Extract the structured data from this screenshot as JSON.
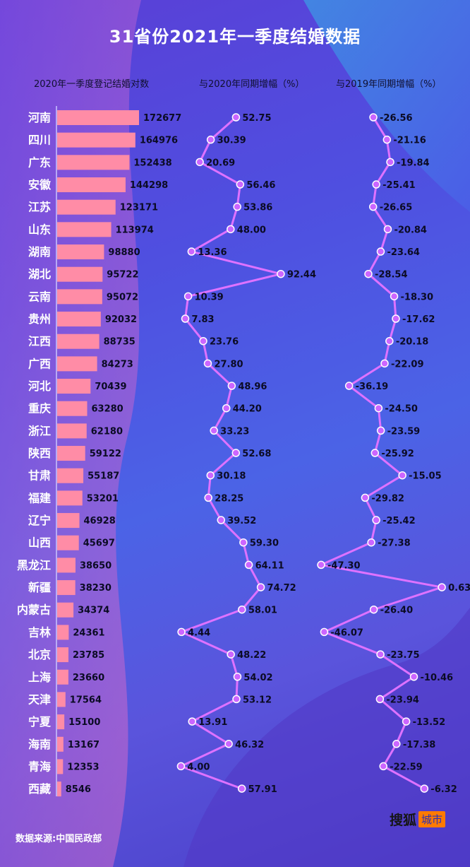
{
  "title": "31省份2021年一季度结婚数据",
  "headers": {
    "bar": "2020年一季度登记结婚对数",
    "yoy2020": "与2020年同期增幅（%）",
    "yoy2019": "与2019年同期增幅（%）"
  },
  "source": "数据来源:中国民政部",
  "logo": {
    "main": "搜狐",
    "tag": "城市"
  },
  "colors": {
    "bar": "#ff8ca6",
    "line": "#de72ff",
    "marker": "#cc66ff",
    "label": "#0b0b24",
    "province": "#ffffff"
  },
  "chart_data": [
    {
      "type": "bar",
      "title": "2020年一季度登记结婚对数",
      "categories": [
        "河南",
        "四川",
        "广东",
        "安徽",
        "江苏",
        "山东",
        "湖南",
        "湖北",
        "云南",
        "贵州",
        "江西",
        "广西",
        "河北",
        "重庆",
        "浙江",
        "陕西",
        "甘肃",
        "福建",
        "辽宁",
        "山西",
        "黑龙江",
        "新疆",
        "内蒙古",
        "吉林",
        "北京",
        "上海",
        "天津",
        "宁夏",
        "海南",
        "青海",
        "西藏"
      ],
      "values": [
        172677,
        164976,
        152438,
        144298,
        123171,
        113974,
        98880,
        95722,
        95072,
        92032,
        88735,
        84273,
        70439,
        63280,
        62180,
        59122,
        55187,
        53201,
        46928,
        45697,
        38650,
        38230,
        34374,
        24361,
        23785,
        23660,
        17564,
        15100,
        13167,
        12353,
        8546
      ],
      "labels": [
        "172677",
        "164976",
        "152438",
        "144298",
        "123171",
        "113974",
        "98880",
        "95722",
        "95072",
        "92032",
        "88735",
        "84273",
        "70439",
        "63280",
        "62180",
        "59122",
        "55187",
        "53201",
        "46928",
        "45697",
        "38650",
        "38230",
        "34374",
        "24361",
        "23785",
        "23660",
        "17564",
        "15100",
        "13167",
        "12353",
        "8546"
      ]
    },
    {
      "type": "line",
      "title": "与2020年同期增幅（%）",
      "categories": [
        "河南",
        "四川",
        "广东",
        "安徽",
        "江苏",
        "山东",
        "湖南",
        "湖北",
        "云南",
        "贵州",
        "江西",
        "广西",
        "河北",
        "重庆",
        "浙江",
        "陕西",
        "甘肃",
        "福建",
        "辽宁",
        "山西",
        "黑龙江",
        "新疆",
        "内蒙古",
        "吉林",
        "北京",
        "上海",
        "天津",
        "宁夏",
        "海南",
        "青海",
        "西藏"
      ],
      "values": [
        52.75,
        30.39,
        20.69,
        56.46,
        53.86,
        48.0,
        13.36,
        92.44,
        10.39,
        7.83,
        23.76,
        27.8,
        48.96,
        44.2,
        33.23,
        52.68,
        30.18,
        28.25,
        39.52,
        59.3,
        64.11,
        74.72,
        58.01,
        4.44,
        48.22,
        54.02,
        53.12,
        13.91,
        46.32,
        4.0,
        57.91
      ],
      "labels": [
        "52.75",
        "30.39",
        "20.69",
        "56.46",
        "53.86",
        "48.00",
        "13.36",
        "92.44",
        "10.39",
        "7.83",
        "23.76",
        "27.80",
        "48.96",
        "44.20",
        "33.23",
        "52.68",
        "30.18",
        "28.25",
        "39.52",
        "59.30",
        "64.11",
        "74.72",
        "58.01",
        "4.44",
        "48.22",
        "54.02",
        "53.12",
        "13.91",
        "46.32",
        "4.00",
        "57.91"
      ]
    },
    {
      "type": "line",
      "title": "与2019年同期增幅（%）",
      "categories": [
        "河南",
        "四川",
        "广东",
        "安徽",
        "江苏",
        "山东",
        "湖南",
        "湖北",
        "云南",
        "贵州",
        "江西",
        "广西",
        "河北",
        "重庆",
        "浙江",
        "陕西",
        "甘肃",
        "福建",
        "辽宁",
        "山西",
        "黑龙江",
        "新疆",
        "内蒙古",
        "吉林",
        "北京",
        "上海",
        "天津",
        "宁夏",
        "海南",
        "青海",
        "西藏"
      ],
      "values": [
        -26.56,
        -21.16,
        -19.84,
        -25.41,
        -26.65,
        -20.84,
        -23.64,
        -28.54,
        -18.3,
        -17.62,
        -20.18,
        -22.09,
        -36.19,
        -24.5,
        -23.59,
        -25.92,
        -15.05,
        -29.82,
        -25.42,
        -27.38,
        -47.3,
        0.63,
        -26.4,
        -46.07,
        -23.75,
        -10.46,
        -23.94,
        -13.52,
        -17.38,
        -22.59,
        -6.32
      ],
      "labels": [
        "-26.56",
        "-21.16",
        "-19.84",
        "-25.41",
        "-26.65",
        "-20.84",
        "-23.64",
        "-28.54",
        "-18.30",
        "-17.62",
        "-20.18",
        "-22.09",
        "-36.19",
        "-24.50",
        "-23.59",
        "-25.92",
        "-15.05",
        "-29.82",
        "-25.42",
        "-27.38",
        "-47.30",
        "0.63",
        "-26.40",
        "-46.07",
        "-23.75",
        "-10.46",
        "-23.94",
        "-13.52",
        "-17.38",
        "-22.59",
        "-6.32"
      ]
    }
  ]
}
